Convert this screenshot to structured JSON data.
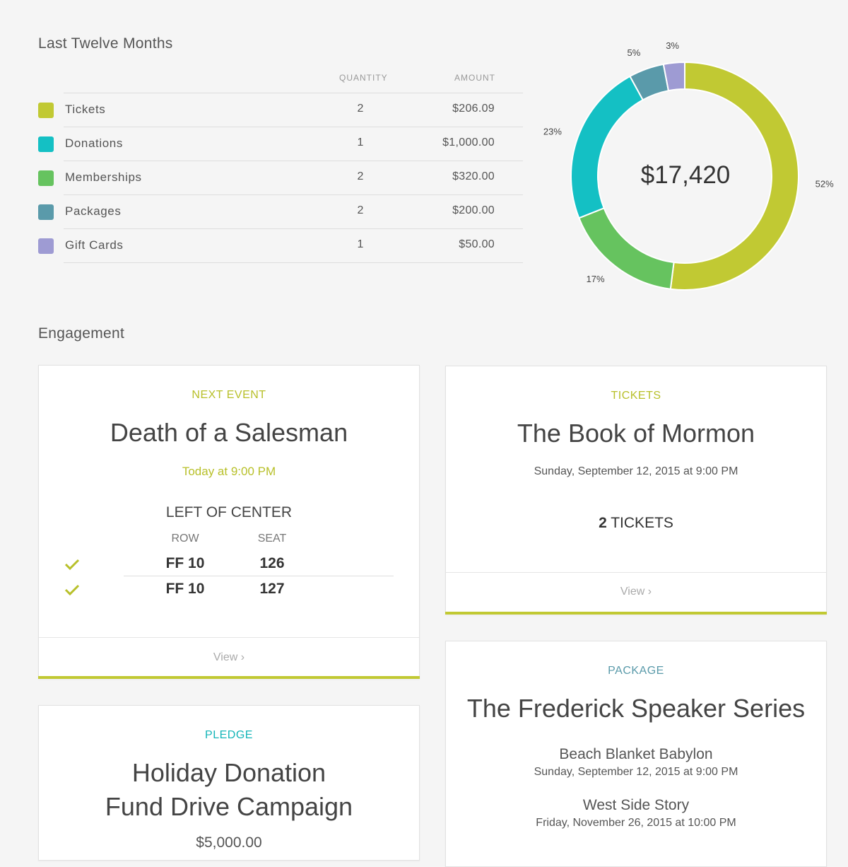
{
  "summary": {
    "title": "Last Twelve Months",
    "headers": {
      "quantity": "QUANTITY",
      "amount": "AMOUNT"
    },
    "rows": [
      {
        "label": "Tickets",
        "quantity": "2",
        "amount": "$206.09",
        "color": "#c1c933"
      },
      {
        "label": "Donations",
        "quantity": "1",
        "amount": "$1,000.00",
        "color": "#14c0c4"
      },
      {
        "label": "Memberships",
        "quantity": "2",
        "amount": "$320.00",
        "color": "#66c35f"
      },
      {
        "label": "Packages",
        "quantity": "2",
        "amount": "$200.00",
        "color": "#5a9aaa"
      },
      {
        "label": "Gift Cards",
        "quantity": "1",
        "amount": "$50.00",
        "color": "#9e9bd3"
      }
    ],
    "total": "$17,420"
  },
  "chart_data": {
    "type": "pie",
    "title": "",
    "center_label": "$17,420",
    "slices": [
      {
        "label": "52%",
        "value": 52,
        "color": "#c1c933"
      },
      {
        "label": "17%",
        "value": 17,
        "color": "#66c35f"
      },
      {
        "label": "23%",
        "value": 23,
        "color": "#14c0c4"
      },
      {
        "label": "5%",
        "value": 5,
        "color": "#5a9aaa"
      },
      {
        "label": "3%",
        "value": 3,
        "color": "#9e9bd3"
      }
    ]
  },
  "engagement": {
    "title": "Engagement",
    "next_event": {
      "eyebrow": "NEXT EVENT",
      "title": "Death of a Salesman",
      "time": "Today at 9:00 PM",
      "section": "LEFT OF CENTER",
      "row_header": "ROW",
      "seat_header": "SEAT",
      "seats": [
        {
          "row": "FF 10",
          "seat": "126"
        },
        {
          "row": "FF 10",
          "seat": "127"
        }
      ],
      "view": "View ›"
    },
    "tickets": {
      "eyebrow": "TICKETS",
      "title": "The Book of Mormon",
      "date": "Sunday, September 12, 2015 at 9:00 PM",
      "count": "2",
      "count_label": "TICKETS",
      "view": "View ›"
    },
    "pledge": {
      "eyebrow": "PLEDGE",
      "title_line1": "Holiday Donation",
      "title_line2": "Fund Drive Campaign",
      "amount": "$5,000.00"
    },
    "package": {
      "eyebrow": "PACKAGE",
      "title": "The Frederick Speaker Series",
      "events": [
        {
          "name": "Beach Blanket Babylon",
          "date": "Sunday, September 12, 2015 at 9:00 PM"
        },
        {
          "name": "West Side Story",
          "date": "Friday, November 26, 2015 at 10:00 PM"
        }
      ]
    }
  },
  "colors": {
    "accent_green": "#b8c02a",
    "accent_teal": "#14b5b8",
    "package_blue": "#5a9aaa"
  }
}
